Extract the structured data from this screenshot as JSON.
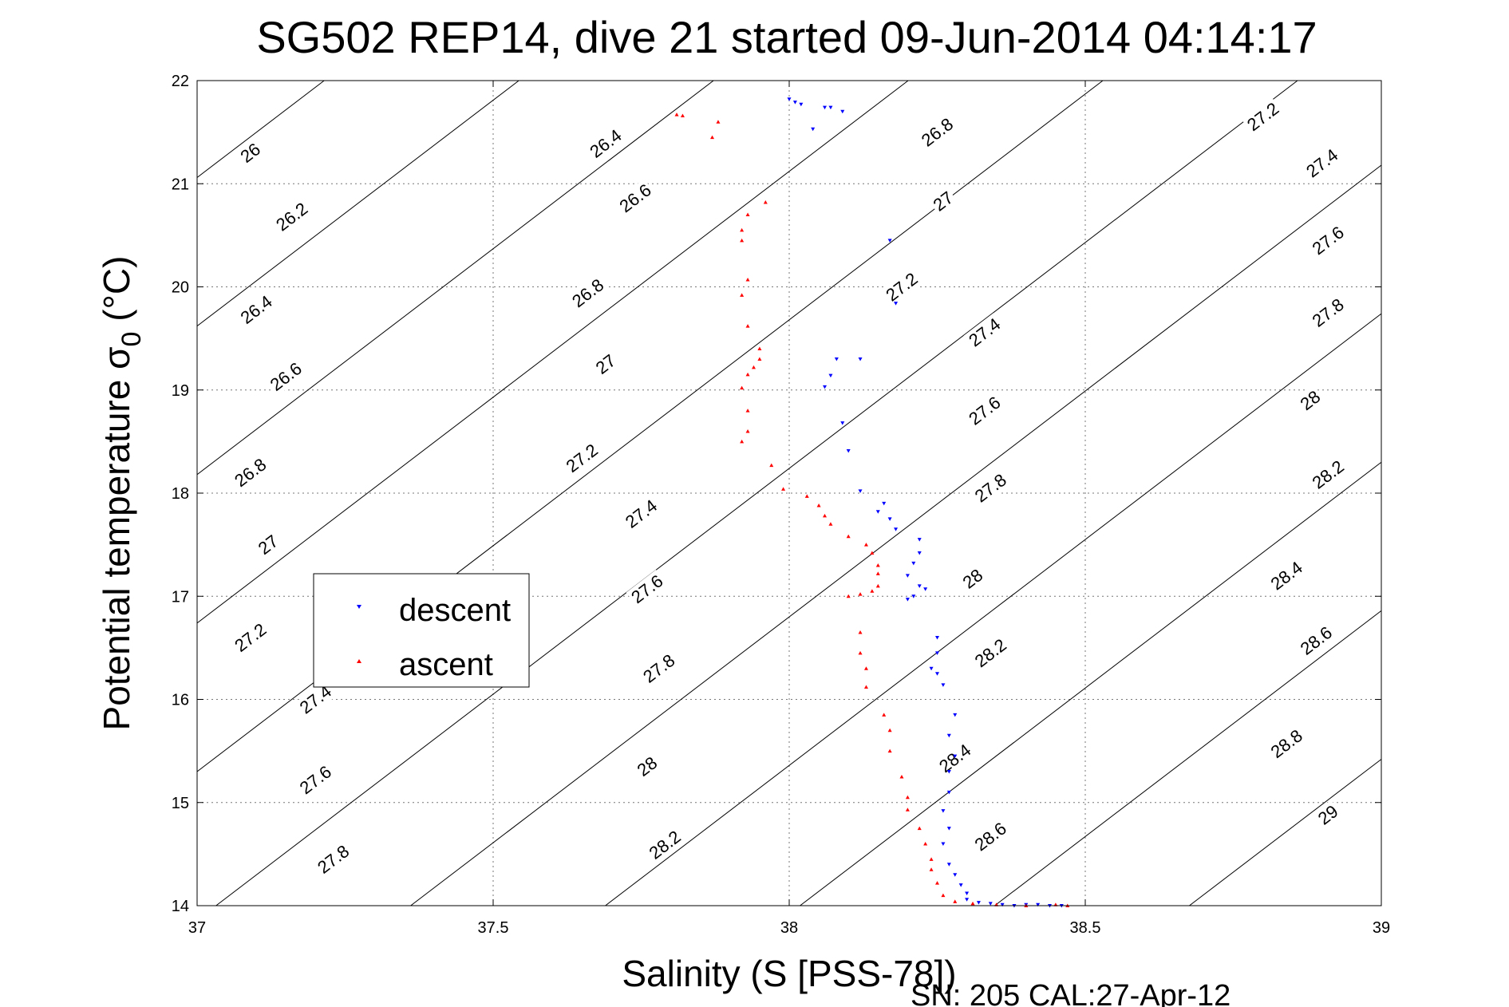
{
  "chart_data": {
    "type": "scatter",
    "title": "SG502 REP14, dive 21 started 09-Jun-2014 04:14:17",
    "xlabel": "Salinity (S [PSS-78])",
    "ylabel": "Potential temperature σ",
    "ylabel_sub": "0",
    "ylabel_unit": " (°C)",
    "footer": "SN: 205  CAL:27-Apr-12",
    "xlim": [
      37,
      39
    ],
    "ylim": [
      14,
      22
    ],
    "xticks": [
      "37",
      "37.5",
      "38",
      "38.5",
      "39"
    ],
    "yticks": [
      "14",
      "15",
      "16",
      "17",
      "18",
      "19",
      "20",
      "21",
      "22"
    ],
    "grid": true,
    "legend_position": "left-middle",
    "series": [
      {
        "name": "descent",
        "color": "#0000ff",
        "marker": "triangle-down",
        "points": [
          [
            38.0,
            21.82
          ],
          [
            38.01,
            21.79
          ],
          [
            38.02,
            21.77
          ],
          [
            38.06,
            21.74
          ],
          [
            38.07,
            21.74
          ],
          [
            38.09,
            21.7
          ],
          [
            38.04,
            21.53
          ],
          [
            38.17,
            20.45
          ],
          [
            38.18,
            19.84
          ],
          [
            38.08,
            19.3
          ],
          [
            38.12,
            19.3
          ],
          [
            38.07,
            19.14
          ],
          [
            38.06,
            19.03
          ],
          [
            38.09,
            18.68
          ],
          [
            38.1,
            18.41
          ],
          [
            38.12,
            18.02
          ],
          [
            38.16,
            17.9
          ],
          [
            38.15,
            17.82
          ],
          [
            38.17,
            17.75
          ],
          [
            38.18,
            17.65
          ],
          [
            38.22,
            17.55
          ],
          [
            38.22,
            17.42
          ],
          [
            38.21,
            17.32
          ],
          [
            38.2,
            17.2
          ],
          [
            38.22,
            17.1
          ],
          [
            38.23,
            17.07
          ],
          [
            38.21,
            17.0
          ],
          [
            38.2,
            16.97
          ],
          [
            38.25,
            16.6
          ],
          [
            38.25,
            16.45
          ],
          [
            38.24,
            16.3
          ],
          [
            38.25,
            16.25
          ],
          [
            38.26,
            16.14
          ],
          [
            38.28,
            15.85
          ],
          [
            38.27,
            15.65
          ],
          [
            38.28,
            15.45
          ],
          [
            38.27,
            15.3
          ],
          [
            38.27,
            15.1
          ],
          [
            38.26,
            14.92
          ],
          [
            38.27,
            14.75
          ],
          [
            38.26,
            14.6
          ],
          [
            38.27,
            14.4
          ],
          [
            38.28,
            14.3
          ],
          [
            38.29,
            14.2
          ],
          [
            38.3,
            14.12
          ],
          [
            38.3,
            14.06
          ],
          [
            38.32,
            14.03
          ],
          [
            38.34,
            14.02
          ],
          [
            38.36,
            14.01
          ],
          [
            38.38,
            14.0
          ],
          [
            38.4,
            14.01
          ],
          [
            38.42,
            14.01
          ],
          [
            38.44,
            14.0
          ],
          [
            38.46,
            14.0
          ]
        ]
      },
      {
        "name": "ascent",
        "color": "#ff0000",
        "marker": "triangle-up",
        "points": [
          [
            37.81,
            21.67
          ],
          [
            37.82,
            21.66
          ],
          [
            37.88,
            21.6
          ],
          [
            37.87,
            21.45
          ],
          [
            37.96,
            20.82
          ],
          [
            37.93,
            20.7
          ],
          [
            37.92,
            20.55
          ],
          [
            37.92,
            20.45
          ],
          [
            37.93,
            20.07
          ],
          [
            37.92,
            19.92
          ],
          [
            37.93,
            19.62
          ],
          [
            37.95,
            19.4
          ],
          [
            37.95,
            19.3
          ],
          [
            37.94,
            19.22
          ],
          [
            37.93,
            19.15
          ],
          [
            37.92,
            19.02
          ],
          [
            37.93,
            18.8
          ],
          [
            37.93,
            18.6
          ],
          [
            37.92,
            18.5
          ],
          [
            37.97,
            18.27
          ],
          [
            37.99,
            18.04
          ],
          [
            38.03,
            17.97
          ],
          [
            38.05,
            17.88
          ],
          [
            38.06,
            17.78
          ],
          [
            38.07,
            17.7
          ],
          [
            38.1,
            17.58
          ],
          [
            38.13,
            17.5
          ],
          [
            38.14,
            17.42
          ],
          [
            38.15,
            17.3
          ],
          [
            38.15,
            17.22
          ],
          [
            38.15,
            17.1
          ],
          [
            38.14,
            17.05
          ],
          [
            38.12,
            17.02
          ],
          [
            38.1,
            17.0
          ],
          [
            38.12,
            16.65
          ],
          [
            38.12,
            16.45
          ],
          [
            38.13,
            16.3
          ],
          [
            38.13,
            16.12
          ],
          [
            38.16,
            15.85
          ],
          [
            38.17,
            15.7
          ],
          [
            38.17,
            15.5
          ],
          [
            38.19,
            15.25
          ],
          [
            38.2,
            15.05
          ],
          [
            38.2,
            14.93
          ],
          [
            38.22,
            14.75
          ],
          [
            38.23,
            14.6
          ],
          [
            38.24,
            14.45
          ],
          [
            38.24,
            14.35
          ],
          [
            38.25,
            14.22
          ],
          [
            38.26,
            14.1
          ],
          [
            38.28,
            14.04
          ],
          [
            38.31,
            14.02
          ],
          [
            38.35,
            14.01
          ],
          [
            38.4,
            14.0
          ],
          [
            38.45,
            14.01
          ],
          [
            38.47,
            14.0
          ]
        ]
      }
    ],
    "density_contours": [
      {
        "label": "26",
        "sal": 37.09,
        "temp": 21.3
      },
      {
        "label": "26.2",
        "sal": 37.16,
        "temp": 20.68
      },
      {
        "label": "26.4",
        "sal": 37.1,
        "temp": 19.78
      },
      {
        "label": "26.6",
        "sal": 37.15,
        "temp": 19.13
      },
      {
        "label": "26.8",
        "sal": 37.09,
        "temp": 18.2
      },
      {
        "label": "27",
        "sal": 37.12,
        "temp": 17.5
      },
      {
        "label": "27.2",
        "sal": 37.09,
        "temp": 16.6
      },
      {
        "label": "27.4",
        "sal": 37.2,
        "temp": 16.0
      },
      {
        "label": "27.6",
        "sal": 37.2,
        "temp": 15.22
      },
      {
        "label": "27.8",
        "sal": 37.23,
        "temp": 14.45
      },
      {
        "label": "26.4",
        "sal": 37.69,
        "temp": 21.39
      },
      {
        "label": "26.6",
        "sal": 37.74,
        "temp": 20.86
      },
      {
        "label": "26.8",
        "sal": 37.66,
        "temp": 19.94
      },
      {
        "label": "27",
        "sal": 37.69,
        "temp": 19.25
      },
      {
        "label": "27.2",
        "sal": 37.65,
        "temp": 18.34
      },
      {
        "label": "27.4",
        "sal": 37.75,
        "temp": 17.8
      },
      {
        "label": "27.6",
        "sal": 37.76,
        "temp": 17.07
      },
      {
        "label": "27.8",
        "sal": 37.78,
        "temp": 16.3
      },
      {
        "label": "28",
        "sal": 37.76,
        "temp": 15.35
      },
      {
        "label": "28.2",
        "sal": 37.79,
        "temp": 14.59
      },
      {
        "label": "26.8",
        "sal": 38.25,
        "temp": 21.5
      },
      {
        "label": "27",
        "sal": 38.26,
        "temp": 20.83
      },
      {
        "label": "27.2",
        "sal": 38.19,
        "temp": 20.0
      },
      {
        "label": "27.4",
        "sal": 38.33,
        "temp": 19.56
      },
      {
        "label": "27.6",
        "sal": 38.33,
        "temp": 18.8
      },
      {
        "label": "27.8",
        "sal": 38.34,
        "temp": 18.05
      },
      {
        "label": "28",
        "sal": 38.31,
        "temp": 17.17
      },
      {
        "label": "28.2",
        "sal": 38.34,
        "temp": 16.45
      },
      {
        "label": "28.4",
        "sal": 38.28,
        "temp": 15.43
      },
      {
        "label": "28.6",
        "sal": 38.34,
        "temp": 14.67
      },
      {
        "label": "27.2",
        "sal": 38.8,
        "temp": 21.65
      },
      {
        "label": "27.4",
        "sal": 38.9,
        "temp": 21.2
      },
      {
        "label": "27.6",
        "sal": 38.91,
        "temp": 20.45
      },
      {
        "label": "27.8",
        "sal": 38.91,
        "temp": 19.75
      },
      {
        "label": "28",
        "sal": 38.88,
        "temp": 18.9
      },
      {
        "label": "28.2",
        "sal": 38.91,
        "temp": 18.18
      },
      {
        "label": "28.4",
        "sal": 38.84,
        "temp": 17.2
      },
      {
        "label": "28.6",
        "sal": 38.89,
        "temp": 16.57
      },
      {
        "label": "28.8",
        "sal": 38.84,
        "temp": 15.57
      },
      {
        "label": "29",
        "sal": 38.91,
        "temp": 14.88
      }
    ]
  }
}
